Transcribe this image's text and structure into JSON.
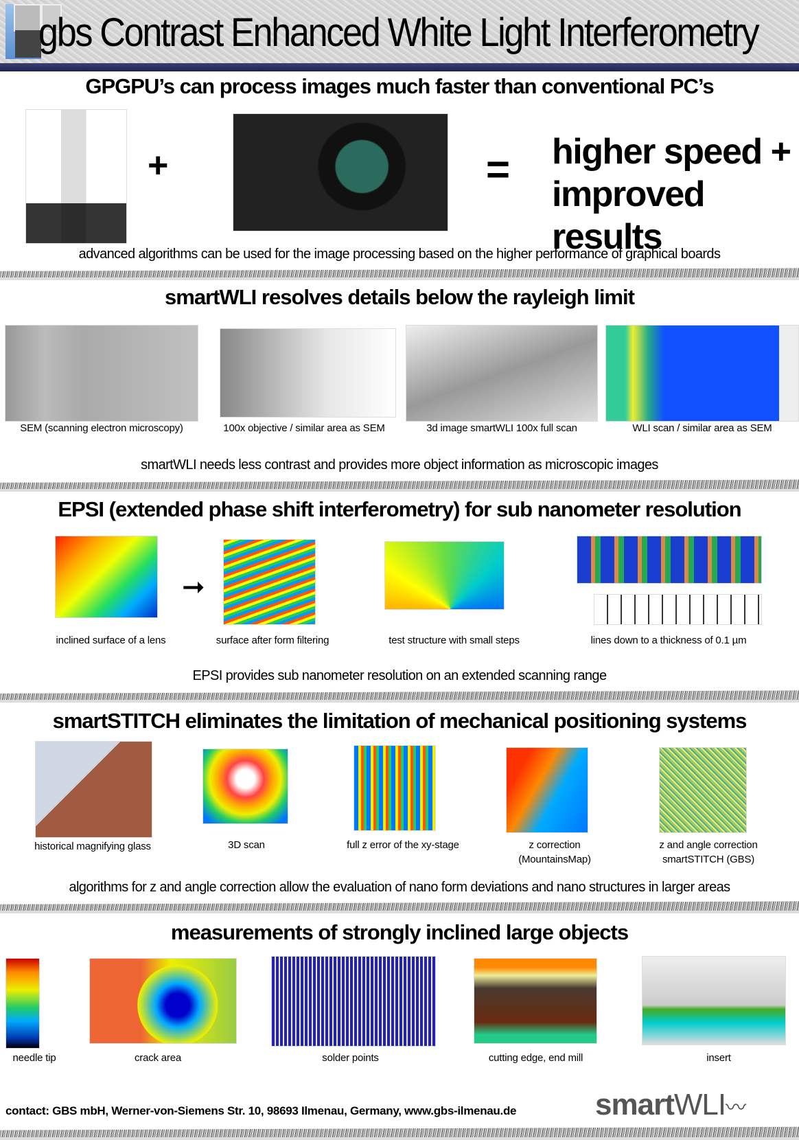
{
  "header": {
    "logo_text": "gbs",
    "title": "Contrast Enhanced White Light Interferometry"
  },
  "sections": [
    {
      "heading": "GPGPU’s can process images much faster than conventional PC’s",
      "plus": "+",
      "equals": "=",
      "result_line1": "higher speed +",
      "result_line2": "improved results",
      "note": "advanced algorithms can be used for the image processing based on the higher performance of graphical boards"
    },
    {
      "heading": "smartWLI resolves details below the rayleigh limit",
      "captions": [
        "SEM (scanning electron microscopy)",
        "100x objective / similar area as SEM",
        "3d image smartWLI 100x full scan",
        "WLI scan / similar area as SEM"
      ],
      "note": "smartWLI needs less contrast and provides more object information as microscopic images"
    },
    {
      "heading": "EPSI (extended phase shift interferometry) for sub nanometer resolution",
      "captions": [
        "inclined surface of a lens",
        "surface after form filtering",
        "test structure with small steps",
        "lines down to a thickness of 0.1 µm"
      ],
      "note": "EPSI provides sub nanometer resolution on an extended scanning range"
    },
    {
      "heading": "smartSTITCH eliminates the limitation of mechanical positioning systems",
      "captions": [
        "historical magnifying glass",
        "3D scan",
        "full z error of the xy-stage",
        "z correction\n(MountainsMap)",
        "z and angle correction\nsmartSTITCH (GBS)"
      ],
      "captions_l1": [
        "z correction",
        "z and angle correction"
      ],
      "captions_l2": [
        "(MountainsMap)",
        "smartSTITCH (GBS)"
      ],
      "note": "algorithms for z and angle correction allow the evaluation of nano form deviations and nano structures in larger areas"
    },
    {
      "heading": "measurements of strongly inclined large objects",
      "captions": [
        "needle tip",
        "crack area",
        "solder points",
        "cutting edge, end mill",
        "insert"
      ]
    }
  ],
  "footer": {
    "contact_label": "contact: ",
    "contact": "GBS mbH, Werner-von-Siemens Str. 10, 98693 Ilmenau, Germany, www.gbs-ilmenau.de",
    "brand_bold": "smart",
    "brand_light": "WLI"
  }
}
